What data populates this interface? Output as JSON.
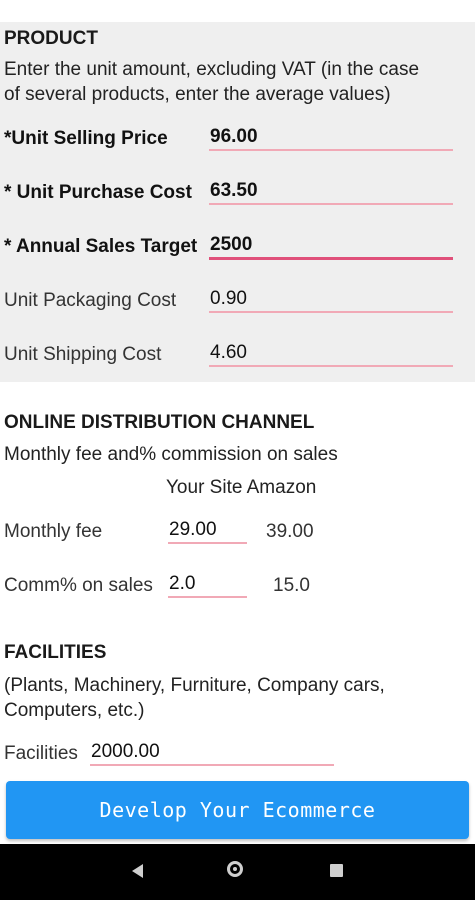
{
  "product": {
    "heading": "PRODUCT",
    "description": [
      "Enter the unit amount, excluding VAT (in the case",
      "of several products, enter the average values)"
    ],
    "fields": [
      {
        "label": "*Unit Selling Price",
        "value": "96.00"
      },
      {
        "label": "* Unit Purchase Cost",
        "value": "63.50"
      },
      {
        "label": "* Annual Sales Target",
        "value": "2500"
      },
      {
        "label": "Unit Packaging Cost",
        "value": "0.90"
      },
      {
        "label": "Unit Shipping Cost",
        "value": "4.60"
      }
    ]
  },
  "online": {
    "heading": "ONLINE DISTRIBUTION CHANNEL",
    "description": "Monthly fee and% commission on sales",
    "columns_header": "Your Site Amazon",
    "rows": [
      {
        "label": "Monthly fee",
        "your_site": "29.00",
        "amazon": "39.00"
      },
      {
        "label": "Comm% on sales",
        "your_site": "2.0",
        "amazon": "15.0"
      }
    ]
  },
  "facilities": {
    "heading": "FACILITIES",
    "description": [
      "(Plants, Machinery, Furniture, Company cars,",
      "Computers, etc.)"
    ],
    "label": "Facilities",
    "value": "2000.00"
  },
  "cta_label": "Develop Your Ecommerce",
  "navbar": {
    "icons": [
      "back-icon",
      "home-icon",
      "recent-apps-icon"
    ]
  }
}
